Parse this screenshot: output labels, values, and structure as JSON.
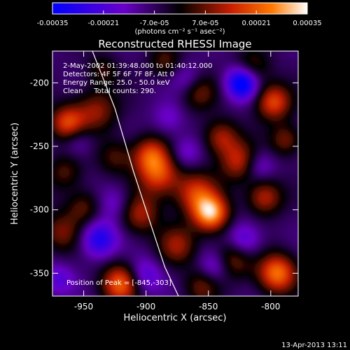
{
  "chart_data": {
    "type": "heatmap",
    "title": "Reconstructed RHESSI Image",
    "xlabel": "Heliocentric X (arcsec)",
    "ylabel": "Heliocentric Y (arcsec)",
    "xlim": [
      -975,
      -778
    ],
    "ylim": [
      -368,
      -175
    ],
    "x_ticks": [
      -950,
      -900,
      -850,
      -800
    ],
    "x_tick_labels": [
      "-950",
      "-900",
      "-850",
      "-800"
    ],
    "y_ticks": [
      -200,
      -250,
      -300,
      -350
    ],
    "y_tick_labels": [
      "-200",
      "-250",
      "-300",
      "-350"
    ],
    "colorbar": {
      "range": [
        -0.00035,
        0.00035
      ],
      "ticks": [
        -0.00035,
        -0.00021,
        -7e-05,
        7e-05,
        0.00021,
        0.00035
      ],
      "tick_labels": [
        "-0.00035",
        "-0.00021",
        "-7.0e-05",
        "7.0e-05",
        "0.00021",
        "0.00035"
      ],
      "units_label": "(photons cm⁻² s⁻¹ asec⁻²)",
      "colors": [
        "#0000ff",
        "#6a00c8",
        "#000000",
        "#c81e00",
        "#ff7800",
        "#ffffff"
      ]
    },
    "annotations": [
      "2-May-2002 01:39:48.000 to 01:40:12.000",
      "Detectors: 4F 5F 6F 7F 8F, Att 0",
      "Energy Range: 25.0 - 50.0 keV",
      "Clean     Total counts: 290.",
      "Position of Peak = [-845,-303]"
    ],
    "peak": {
      "x": -845,
      "y": -303
    },
    "features": [
      {
        "x": -848,
        "y": -303,
        "v": 1.0,
        "s": 10
      },
      {
        "x": -795,
        "y": -350,
        "v": 0.9,
        "s": 11
      },
      {
        "x": -920,
        "y": -358,
        "v": 0.85,
        "s": 11
      },
      {
        "x": -963,
        "y": -232,
        "v": 0.75,
        "s": 10
      },
      {
        "x": -890,
        "y": -272,
        "v": 0.72,
        "s": 12
      },
      {
        "x": -897,
        "y": -256,
        "v": 0.6,
        "s": 10
      },
      {
        "x": -860,
        "y": -287,
        "v": 0.65,
        "s": 12
      },
      {
        "x": -825,
        "y": -262,
        "v": 0.62,
        "s": 11
      },
      {
        "x": -805,
        "y": -290,
        "v": 0.6,
        "s": 10
      },
      {
        "x": -798,
        "y": -215,
        "v": 0.75,
        "s": 10
      },
      {
        "x": -840,
        "y": -243,
        "v": 0.55,
        "s": 10
      },
      {
        "x": -858,
        "y": -207,
        "v": 0.45,
        "s": 10
      },
      {
        "x": -940,
        "y": -222,
        "v": 0.5,
        "s": 12
      },
      {
        "x": -925,
        "y": -258,
        "v": 0.35,
        "s": 10
      },
      {
        "x": -905,
        "y": -303,
        "v": 0.55,
        "s": 11
      },
      {
        "x": -875,
        "y": -328,
        "v": 0.5,
        "s": 11
      },
      {
        "x": -830,
        "y": -338,
        "v": 0.55,
        "s": 11
      },
      {
        "x": -968,
        "y": -318,
        "v": 0.45,
        "s": 11
      },
      {
        "x": -950,
        "y": -298,
        "v": 0.4,
        "s": 10
      },
      {
        "x": -965,
        "y": -270,
        "v": 0.35,
        "s": 10
      },
      {
        "x": -935,
        "y": -190,
        "v": 0.3,
        "s": 9
      },
      {
        "x": -885,
        "y": -183,
        "v": 0.35,
        "s": 9
      },
      {
        "x": -815,
        "y": -188,
        "v": 0.4,
        "s": 10
      },
      {
        "x": -788,
        "y": -245,
        "v": 0.45,
        "s": 9
      },
      {
        "x": -855,
        "y": -360,
        "v": 0.4,
        "s": 10
      },
      {
        "x": -823,
        "y": -200,
        "v": -0.95,
        "s": 9
      },
      {
        "x": -955,
        "y": -245,
        "v": -0.3,
        "s": 9
      },
      {
        "x": -938,
        "y": -323,
        "v": -0.65,
        "s": 10
      },
      {
        "x": -902,
        "y": -352,
        "v": -0.45,
        "s": 10
      },
      {
        "x": -868,
        "y": -255,
        "v": -0.3,
        "s": 9
      },
      {
        "x": -822,
        "y": -325,
        "v": -0.5,
        "s": 10
      },
      {
        "x": -810,
        "y": -265,
        "v": -0.35,
        "s": 9
      },
      {
        "x": -882,
        "y": -228,
        "v": -0.25,
        "s": 9
      },
      {
        "x": -866,
        "y": -198,
        "v": -0.3,
        "s": 9
      },
      {
        "x": -925,
        "y": -295,
        "v": -0.3,
        "s": 10
      },
      {
        "x": -970,
        "y": -355,
        "v": -0.35,
        "s": 9
      },
      {
        "x": -845,
        "y": -345,
        "v": -0.4,
        "s": 9
      }
    ],
    "limb_curve": [
      {
        "x": -943,
        "y": -175
      },
      {
        "x": -925,
        "y": -220
      },
      {
        "x": -910,
        "y": -270
      },
      {
        "x": -895,
        "y": -315
      },
      {
        "x": -885,
        "y": -345
      },
      {
        "x": -874,
        "y": -368
      }
    ]
  },
  "footer": {
    "timestamp": "13-Apr-2013 13:11"
  }
}
